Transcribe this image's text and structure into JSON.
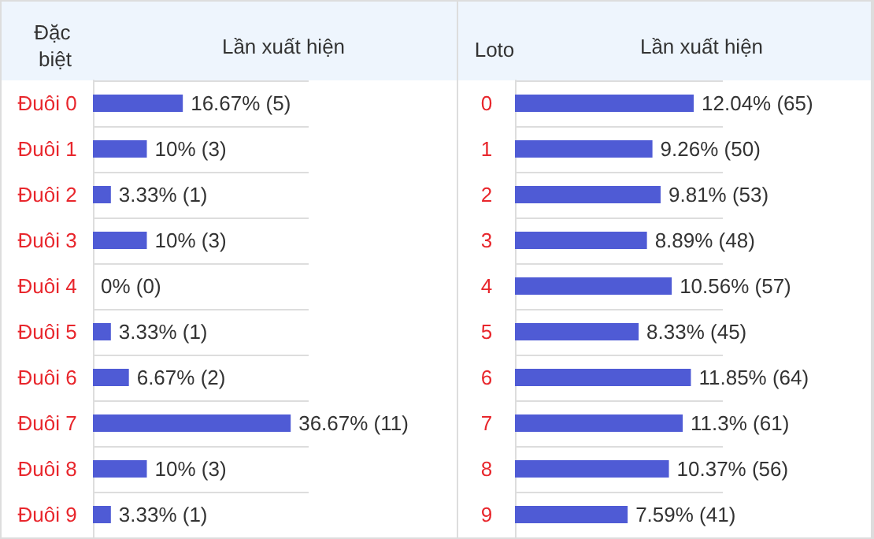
{
  "chart_data": [
    {
      "type": "bar",
      "orientation": "horizontal",
      "title": "Lần xuất hiện",
      "ylabel": "Đặc biệt",
      "categories": [
        "Đuôi 0",
        "Đuôi 1",
        "Đuôi 2",
        "Đuôi 3",
        "Đuôi 4",
        "Đuôi 5",
        "Đuôi 6",
        "Đuôi 7",
        "Đuôi 8",
        "Đuôi 9"
      ],
      "series": [
        {
          "color": "#4f5bd5",
          "values": [
            16.67,
            10,
            3.33,
            10,
            0,
            3.33,
            6.67,
            36.67,
            10,
            3.33
          ],
          "value_labels": [
            "16.67% (5)",
            "10% (3)",
            "3.33% (1)",
            "10% (3)",
            "0% (0)",
            "3.33% (1)",
            "6.67% (2)",
            "36.67% (11)",
            "10% (3)",
            "3.33% (1)"
          ]
        }
      ],
      "grid": "y",
      "tick_labels": "y"
    },
    {
      "type": "bar",
      "orientation": "horizontal",
      "title": "Lần xuất hiện",
      "ylabel": "Loto",
      "categories": [
        "0",
        "1",
        "2",
        "3",
        "4",
        "5",
        "6",
        "7",
        "8",
        "9"
      ],
      "series": [
        {
          "color": "#4f5bd5",
          "values": [
            12.04,
            9.26,
            9.81,
            8.89,
            10.56,
            8.33,
            11.85,
            11.3,
            10.37,
            7.59
          ],
          "value_labels": [
            "12.04% (65)",
            "9.26% (50)",
            "9.81% (53)",
            "8.89% (48)",
            "10.56% (57)",
            "8.33% (45)",
            "11.85% (64)",
            "11.3% (61)",
            "10.37% (56)",
            "7.59% (41)"
          ]
        }
      ],
      "grid": "y",
      "tick_labels": "y"
    }
  ]
}
